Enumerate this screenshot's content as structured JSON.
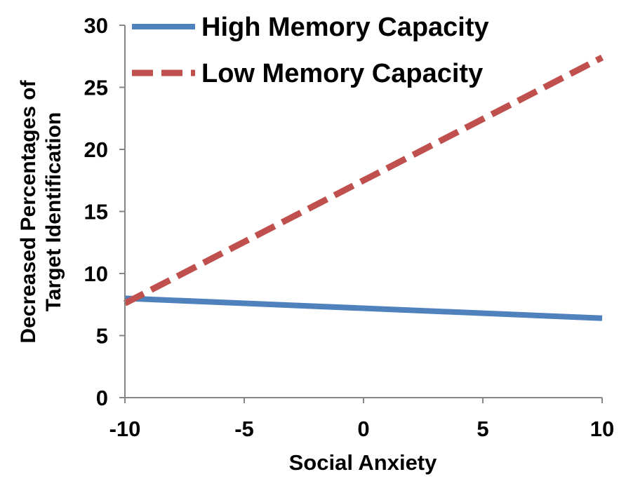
{
  "chart_data": {
    "type": "line",
    "title": "",
    "xlabel": "Social Anxiety",
    "ylabel_lines": [
      "Decreased Percentages of",
      "Target Identification"
    ],
    "xlim": [
      -10,
      10
    ],
    "ylim": [
      0,
      30
    ],
    "x_ticks": [
      -10,
      -5,
      0,
      5,
      10
    ],
    "y_ticks": [
      0,
      5,
      10,
      15,
      20,
      25,
      30
    ],
    "x_tick_labels": [
      "-10",
      "-5",
      "0",
      "5",
      "10"
    ],
    "y_tick_labels": [
      "0",
      "5",
      "10",
      "15",
      "20",
      "25",
      "30"
    ],
    "grid": false,
    "legend_position": "top-right",
    "series": [
      {
        "name": "High Memory Capacity",
        "x": [
          -10,
          10
        ],
        "y": [
          8.0,
          6.4
        ],
        "color": "#4f81bd",
        "style": "solid"
      },
      {
        "name": "Low Memory Capacity",
        "x": [
          -10,
          10
        ],
        "y": [
          7.6,
          27.4
        ],
        "color": "#c0504d",
        "style": "dashed"
      }
    ]
  }
}
